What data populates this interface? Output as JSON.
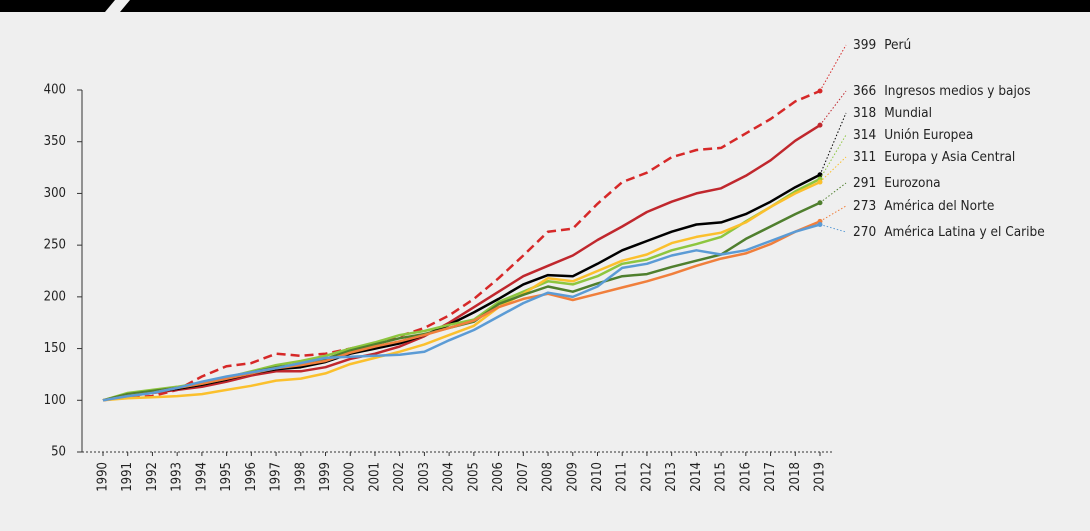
{
  "chart_data": {
    "type": "line",
    "categories": [
      "1990",
      "1991",
      "1992",
      "1993",
      "1994",
      "1995",
      "1996",
      "1997",
      "1998",
      "1999",
      "2000",
      "2001",
      "2002",
      "2003",
      "2004",
      "2005",
      "2006",
      "2007",
      "2008",
      "2009",
      "2010",
      "2011",
      "2012",
      "2013",
      "2014",
      "2015",
      "2016",
      "2017",
      "2018",
      "2019"
    ],
    "ylim": [
      50,
      400
    ],
    "yticks": [
      50,
      100,
      150,
      200,
      250,
      300,
      350,
      400
    ],
    "series": [
      {
        "name": "Perú",
        "color": "#d62828",
        "line_style": "dashed",
        "values": [
          100,
          103,
          104,
          110,
          123,
          133,
          136,
          145,
          143,
          145,
          150,
          155,
          162,
          170,
          182,
          198,
          218,
          240,
          263,
          266,
          290,
          311,
          320,
          335,
          342,
          344,
          358,
          372,
          389,
          399
        ]
      },
      {
        "name": "Ingresos medios y bajos",
        "color": "#c0272d",
        "values": [
          100,
          105,
          107,
          110,
          113,
          118,
          124,
          128,
          128,
          132,
          140,
          145,
          152,
          162,
          175,
          190,
          205,
          220,
          230,
          240,
          255,
          268,
          282,
          292,
          300,
          305,
          317,
          332,
          351,
          366
        ]
      },
      {
        "name": "Mundial",
        "color": "#000000",
        "values": [
          100,
          106,
          108,
          111,
          115,
          120,
          126,
          130,
          132,
          137,
          145,
          150,
          155,
          163,
          173,
          185,
          198,
          212,
          221,
          220,
          232,
          245,
          254,
          263,
          270,
          272,
          280,
          292,
          306,
          318
        ]
      },
      {
        "name": "Unión Europea",
        "color": "#8dc63f",
        "values": [
          100,
          107,
          110,
          113,
          117,
          122,
          128,
          134,
          138,
          143,
          150,
          156,
          163,
          167,
          173,
          178,
          195,
          205,
          215,
          212,
          220,
          232,
          236,
          245,
          251,
          258,
          273,
          287,
          302,
          314
        ]
      },
      {
        "name": "Europa y Asia Central",
        "color": "#fbc02d",
        "values": [
          100,
          102,
          103,
          104,
          106,
          110,
          114,
          119,
          121,
          126,
          135,
          141,
          147,
          154,
          163,
          172,
          190,
          203,
          218,
          215,
          225,
          235,
          241,
          252,
          258,
          262,
          272,
          287,
          300,
          311
        ]
      },
      {
        "name": "Eurozona",
        "color": "#4f7f2e",
        "values": [
          100,
          106,
          109,
          112,
          116,
          121,
          127,
          132,
          135,
          140,
          148,
          154,
          160,
          164,
          170,
          176,
          193,
          202,
          210,
          205,
          213,
          220,
          222,
          229,
          235,
          241,
          256,
          268,
          280,
          291
        ]
      },
      {
        "name": "América del Norte",
        "color": "#f07f3c",
        "values": [
          100,
          104,
          107,
          112,
          116,
          121,
          126,
          131,
          134,
          138,
          146,
          152,
          157,
          163,
          170,
          177,
          190,
          198,
          203,
          197,
          203,
          209,
          215,
          222,
          230,
          237,
          242,
          251,
          263,
          273
        ]
      },
      {
        "name": "América Latina y el Caribe",
        "color": "#5b9bd5",
        "values": [
          100,
          104,
          107,
          112,
          118,
          123,
          127,
          131,
          136,
          141,
          142,
          143,
          144,
          147,
          158,
          168,
          181,
          194,
          204,
          200,
          210,
          228,
          232,
          240,
          245,
          241,
          245,
          254,
          263,
          270
        ]
      }
    ]
  }
}
